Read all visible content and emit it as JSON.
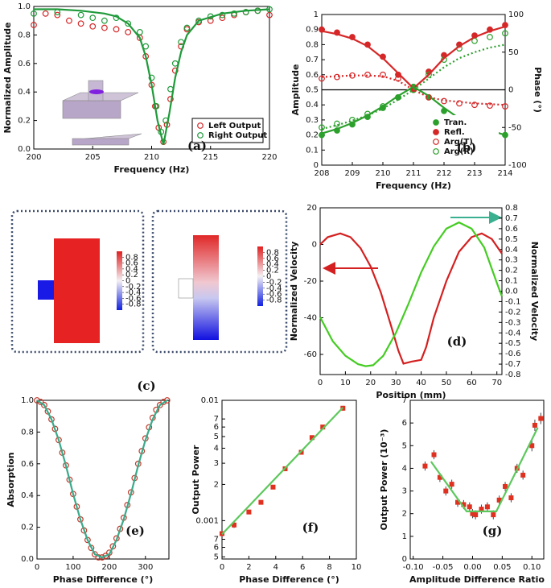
{
  "chart_data": [
    {
      "type": "scatter",
      "label": "(a)",
      "xlabel": "Frequency (Hz)",
      "ylabel": "Normalized Amplitude",
      "xlim": [
        200,
        220
      ],
      "ylim": [
        0,
        1
      ],
      "xticks": [
        200,
        205,
        210,
        215,
        220
      ],
      "yticks": [
        {
          "value": 0,
          "label": "0.0"
        },
        0.2,
        0.4,
        0.6,
        0.8,
        {
          "value": 1,
          "label": "1.0"
        }
      ],
      "legend": "lower right",
      "series": [
        {
          "name": "Left Output",
          "color": "#d62728",
          "marker": "open-circle",
          "x": [
            200,
            201,
            202,
            203,
            204,
            205,
            206,
            207,
            208,
            209,
            209.5,
            210,
            210.3,
            210.6,
            211,
            211.3,
            211.6,
            212,
            212.5,
            213,
            214,
            215,
            216,
            217,
            218,
            219,
            220
          ],
          "values": [
            0.87,
            0.95,
            0.94,
            0.9,
            0.88,
            0.86,
            0.85,
            0.84,
            0.82,
            0.78,
            0.65,
            0.45,
            0.3,
            0.15,
            0.05,
            0.17,
            0.35,
            0.55,
            0.72,
            0.84,
            0.89,
            0.9,
            0.92,
            0.94,
            0.96,
            0.97,
            0.94
          ]
        },
        {
          "name": "Right Output",
          "color": "#1f9a3a",
          "marker": "open-circle",
          "x": [
            200,
            202,
            204,
            205,
            206,
            207,
            208,
            209,
            209.5,
            210,
            210.4,
            210.8,
            211.2,
            211.6,
            212,
            212.5,
            213,
            214,
            215,
            216,
            217,
            218,
            219,
            220
          ],
          "values": [
            0.95,
            0.96,
            0.94,
            0.92,
            0.9,
            0.92,
            0.88,
            0.82,
            0.72,
            0.5,
            0.3,
            0.12,
            0.2,
            0.42,
            0.6,
            0.75,
            0.85,
            0.9,
            0.93,
            0.94,
            0.95,
            0.96,
            0.97,
            0.98
          ]
        },
        {
          "color": "#1f9a3a",
          "marker": "line",
          "x": [
            200,
            202,
            204,
            206,
            207,
            208,
            209,
            209.5,
            210,
            210.5,
            211,
            211.5,
            212,
            212.5,
            213,
            214,
            216,
            218,
            220
          ],
          "values": [
            0.98,
            0.98,
            0.97,
            0.95,
            0.93,
            0.88,
            0.78,
            0.65,
            0.45,
            0.2,
            0.03,
            0.25,
            0.5,
            0.68,
            0.8,
            0.9,
            0.95,
            0.97,
            0.98
          ]
        }
      ]
    },
    {
      "type": "scatter",
      "label": "(b)",
      "xlabel": "Frequency (Hz)",
      "ylabel": "Amplitude",
      "y2label": "Phase (°)",
      "xlim": [
        208,
        214
      ],
      "ylim": [
        0,
        1
      ],
      "y2lim": [
        -100,
        100
      ],
      "xticks": [
        208,
        209,
        210,
        211,
        212,
        213,
        214
      ],
      "yticks": [
        0,
        0.1,
        0.2,
        0.3,
        0.4,
        0.5,
        0.6,
        0.7,
        0.8,
        0.9,
        1
      ],
      "y2ticks": [
        -100,
        -50,
        0,
        50,
        100
      ],
      "refline": 0.5,
      "legend": "lower right",
      "series": [
        {
          "name": "Tran.",
          "color": "#2ca02c",
          "marker": "circle",
          "x": [
            208,
            208.5,
            209,
            209.5,
            210,
            210.5,
            211,
            211.5,
            212,
            212.5,
            213,
            213.5,
            214
          ],
          "values": [
            0.2,
            0.23,
            0.27,
            0.32,
            0.38,
            0.45,
            0.52,
            0.45,
            0.36,
            0.29,
            0.25,
            0.22,
            0.2
          ]
        },
        {
          "name": "Refl.",
          "color": "#d62728",
          "marker": "circle",
          "x": [
            208,
            208.5,
            209,
            209.5,
            210,
            210.5,
            211,
            211.5,
            212,
            212.5,
            213,
            213.5,
            214
          ],
          "values": [
            0.9,
            0.88,
            0.85,
            0.8,
            0.72,
            0.6,
            0.5,
            0.62,
            0.73,
            0.8,
            0.86,
            0.9,
            0.93
          ]
        },
        {
          "name": "Arg(T)",
          "color": "#d62728",
          "marker": "open-circle",
          "axis": "y2",
          "x": [
            208,
            208.5,
            209,
            209.5,
            210,
            210.5,
            211,
            211.5,
            212,
            212.5,
            213,
            213.5,
            214
          ],
          "values": [
            15,
            17,
            19,
            20,
            20,
            15,
            0,
            -10,
            -15,
            -18,
            -20,
            -21,
            -22
          ]
        },
        {
          "name": "Arg(R)",
          "color": "#2ca02c",
          "marker": "open-circle",
          "axis": "y2",
          "x": [
            208,
            208.5,
            209,
            209.5,
            210,
            210.5,
            211,
            211.5,
            212,
            212.5,
            213,
            213.5,
            214
          ],
          "values": [
            -50,
            -45,
            -40,
            -32,
            -22,
            -10,
            0,
            20,
            40,
            55,
            65,
            70,
            75
          ]
        },
        {
          "color": "#d62728",
          "marker": "line",
          "x": [
            208,
            208.5,
            209,
            209.5,
            210,
            210.5,
            211,
            211.5,
            212,
            212.5,
            213,
            213.5,
            214
          ],
          "values": [
            0.89,
            0.87,
            0.84,
            0.79,
            0.71,
            0.61,
            0.51,
            0.6,
            0.71,
            0.79,
            0.85,
            0.89,
            0.92
          ]
        },
        {
          "color": "#2ca02c",
          "marker": "line",
          "x": [
            208,
            208.5,
            209,
            209.5,
            210,
            210.5,
            211,
            211.5,
            212,
            212.5,
            213,
            213.5,
            214
          ],
          "values": [
            0.21,
            0.24,
            0.28,
            0.33,
            0.39,
            0.46,
            0.52,
            0.46,
            0.38,
            0.31,
            0.26,
            0.23,
            0.2
          ]
        },
        {
          "color": "#d62728",
          "marker": "line",
          "dash": true,
          "axis": "y2",
          "x": [
            208,
            208.5,
            209,
            209.5,
            210,
            210.5,
            211,
            211.5,
            212,
            212.5,
            213,
            213.5,
            214
          ],
          "values": [
            17,
            18,
            19,
            19,
            18,
            12,
            0,
            -10,
            -14,
            -16,
            -18,
            -19,
            -20
          ]
        },
        {
          "color": "#2ca02c",
          "marker": "line",
          "dash": true,
          "axis": "y2",
          "x": [
            208,
            208.5,
            209,
            209.5,
            210,
            210.5,
            211,
            211.5,
            212,
            212.5,
            213,
            213.5,
            214
          ],
          "values": [
            -52,
            -47,
            -41,
            -34,
            -25,
            -13,
            0,
            15,
            30,
            42,
            50,
            56,
            60
          ]
        }
      ]
    },
    {
      "type": "heatmap",
      "label": "(c)",
      "colorbar_lim": [
        -1,
        1
      ],
      "maps": [
        {
          "colorbar_ticks": [
            0.8,
            0.6,
            0.4,
            0.2,
            0,
            -0.2,
            -0.4,
            -0.6,
            -0.8
          ]
        },
        {
          "colorbar_ticks": [
            0.8,
            0.6,
            0.4,
            0.2,
            0,
            -0.2,
            -0.4,
            -0.6,
            -0.8
          ]
        }
      ]
    },
    {
      "type": "line",
      "label": "(d)",
      "xlabel": "Position (mm)",
      "ylabel": "Normalized Velocity",
      "y2label": "Normalized Velocity",
      "xlim": [
        0,
        72
      ],
      "ylim": [
        -71,
        20
      ],
      "y2lim": [
        -0.8,
        0.8
      ],
      "xticks": [
        0,
        10,
        20,
        30,
        40,
        50,
        60,
        70
      ],
      "yticks": [
        -60,
        -40,
        -20,
        0,
        20
      ],
      "y2ticks": [
        -0.8,
        -0.7,
        -0.6,
        -0.5,
        -0.4,
        -0.3,
        -0.2,
        -0.1,
        {
          "value": 0,
          "label": "0.0"
        },
        0.1,
        0.2,
        0.3,
        0.4,
        0.5,
        0.6,
        0.7,
        0.8
      ],
      "series": [
        {
          "color": "#d42020",
          "marker": "line",
          "x": [
            0,
            3,
            8,
            12,
            16,
            20,
            24,
            28,
            31,
            33,
            36,
            40,
            42,
            45,
            50,
            55,
            60,
            64,
            68,
            72
          ],
          "values": [
            0,
            4,
            6,
            4,
            -2,
            -12,
            -26,
            -44,
            -58,
            -65,
            -64,
            -63,
            -56,
            -40,
            -20,
            -4,
            4,
            6,
            3,
            -5
          ]
        },
        {
          "color": "#44cc22",
          "marker": "line",
          "axis": "y2",
          "x": [
            0,
            5,
            10,
            15,
            18,
            21,
            25,
            30,
            35,
            40,
            45,
            50,
            55,
            60,
            65,
            70,
            72
          ],
          "values": [
            -0.25,
            -0.48,
            -0.62,
            -0.7,
            -0.72,
            -0.71,
            -0.62,
            -0.4,
            -0.12,
            0.18,
            0.43,
            0.6,
            0.66,
            0.6,
            0.42,
            0.08,
            -0.05
          ]
        }
      ]
    },
    {
      "type": "scatter",
      "label": "(e)",
      "xlabel": "Phase Difference (°)",
      "ylabel": "Absorption",
      "xlim": [
        0,
        365
      ],
      "ylim": [
        0,
        1
      ],
      "xticks": [
        0,
        100,
        200,
        300
      ],
      "yticks": [
        {
          "value": 0,
          "label": "0.0"
        },
        0.2,
        0.4,
        0.6,
        0.8,
        {
          "value": 1,
          "label": "1.0"
        }
      ],
      "series": [
        {
          "color": "#c0392b",
          "marker": "open-circle",
          "x": [
            0,
            10,
            20,
            30,
            40,
            50,
            60,
            70,
            80,
            90,
            100,
            110,
            120,
            130,
            140,
            150,
            160,
            170,
            180,
            190,
            200,
            210,
            220,
            230,
            240,
            250,
            260,
            270,
            280,
            290,
            300,
            310,
            320,
            330,
            340,
            350,
            360
          ],
          "values": [
            1,
            0.99,
            0.97,
            0.93,
            0.88,
            0.82,
            0.75,
            0.67,
            0.59,
            0.5,
            0.41,
            0.33,
            0.25,
            0.18,
            0.12,
            0.07,
            0.03,
            0.01,
            0.01,
            0.02,
            0.04,
            0.08,
            0.13,
            0.19,
            0.26,
            0.34,
            0.42,
            0.51,
            0.6,
            0.68,
            0.76,
            0.83,
            0.89,
            0.94,
            0.97,
            0.99,
            1
          ]
        },
        {
          "color": "#3aaa8a",
          "marker": "line",
          "x": [
            0,
            20,
            40,
            60,
            80,
            100,
            120,
            140,
            160,
            180,
            200,
            220,
            240,
            260,
            280,
            300,
            320,
            340,
            360
          ],
          "values": [
            1,
            0.97,
            0.88,
            0.75,
            0.59,
            0.41,
            0.25,
            0.12,
            0.03,
            0.01,
            0.03,
            0.12,
            0.25,
            0.41,
            0.59,
            0.75,
            0.88,
            0.97,
            1
          ]
        }
      ]
    },
    {
      "type": "scatter",
      "label": "(f)",
      "xlabel": "Phase Difference (°)",
      "ylabel": "Output Power",
      "log": true,
      "xlim": [
        0,
        10
      ],
      "ylim": [
        0.00048,
        0.01
      ],
      "xticks": [
        0,
        2,
        4,
        6,
        8,
        10
      ],
      "yticks": [
        {
          "value": 0.0005,
          "label": "5"
        },
        {
          "value": 0.0006,
          "label": "6"
        },
        {
          "value": 0.0007,
          "label": "7"
        },
        0.001,
        {
          "value": 0.002,
          "label": "2"
        },
        {
          "value": 0.003,
          "label": "3"
        },
        {
          "value": 0.004,
          "label": "4"
        },
        {
          "value": 0.005,
          "label": "5"
        },
        {
          "value": 0.006,
          "label": "6"
        },
        {
          "value": 0.007,
          "label": "7"
        },
        0.01
      ],
      "series": [
        {
          "color": "#e03020",
          "marker": "square",
          "x": [
            0,
            0.9,
            2,
            2.9,
            3.8,
            4.7,
            5.9,
            6.7,
            7.5,
            9
          ],
          "values": [
            0.00078,
            0.00092,
            0.00118,
            0.00142,
            0.0019,
            0.0027,
            0.0037,
            0.0049,
            0.006,
            0.0086
          ],
          "errors": [
            4e-05,
            5e-05,
            5e-05,
            6e-05,
            8e-05,
            0.0001,
            0.00012,
            0.00015,
            0.0002,
            0.0004
          ]
        },
        {
          "color": "#5cc85c",
          "marker": "line",
          "x": [
            0,
            9
          ],
          "values": [
            0.00077,
            0.0087
          ]
        }
      ]
    },
    {
      "type": "scatter",
      "label": "(g)",
      "xlabel": "Amplitude Difference Ratio",
      "ylabel": "Output Power (10⁻³)",
      "xlim": [
        -0.105,
        0.12
      ],
      "ylim": [
        0,
        7
      ],
      "xticks": [
        {
          "value": -0.1,
          "label": "-0.10"
        },
        {
          "value": -0.05,
          "label": "-0.05"
        },
        {
          "value": 0,
          "label": "0.00"
        },
        {
          "value": 0.05,
          "label": "0.05"
        },
        {
          "value": 0.1,
          "label": "0.10"
        }
      ],
      "yticks": [
        0,
        1,
        2,
        3,
        4,
        5,
        6,
        7
      ],
      "series": [
        {
          "color": "#e03020",
          "marker": "square",
          "x": [
            -0.08,
            -0.065,
            -0.055,
            -0.045,
            -0.035,
            -0.025,
            -0.015,
            -0.005,
            0,
            0.005,
            0.015,
            0.025,
            0.035,
            0.045,
            0.055,
            0.065,
            0.075,
            0.085,
            0.1,
            0.105,
            0.115
          ],
          "values": [
            4.1,
            4.6,
            3.6,
            3.0,
            3.3,
            2.5,
            2.4,
            2.3,
            2.0,
            1.95,
            2.2,
            2.3,
            1.95,
            2.6,
            3.2,
            2.7,
            4.0,
            3.7,
            5.0,
            5.9,
            6.2
          ],
          "errors": [
            0.2,
            0.2,
            0.2,
            0.2,
            0.2,
            0.2,
            0.2,
            0.2,
            0.2,
            0.2,
            0.2,
            0.2,
            0.2,
            0.2,
            0.2,
            0.2,
            0.2,
            0.2,
            0.25,
            0.25,
            0.25
          ]
        },
        {
          "color": "#5cc85c",
          "marker": "line",
          "x": [
            -0.07,
            -0.01,
            0.04,
            0.11
          ],
          "values": [
            4.3,
            2.1,
            2.1,
            5.8
          ]
        }
      ]
    }
  ]
}
